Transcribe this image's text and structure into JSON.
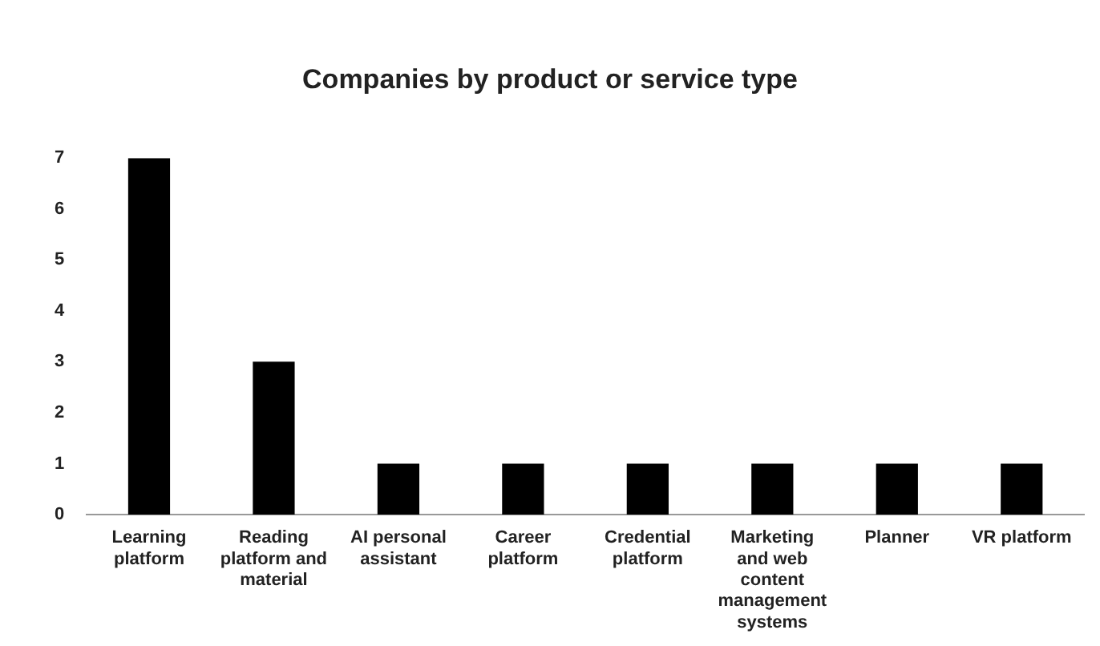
{
  "chart_data": {
    "type": "bar",
    "title": "Companies by product or service type",
    "categories": [
      "Learning platform",
      "Reading platform and material",
      "AI personal assistant",
      "Career platform",
      "Credential platform",
      "Marketing and web content management systems",
      "Planner",
      "VR platform"
    ],
    "values": [
      7,
      3,
      1,
      1,
      1,
      1,
      1,
      1
    ],
    "color": "#000000",
    "ylim": [
      0,
      7
    ],
    "yticks": [
      0,
      1,
      2,
      3,
      4,
      5,
      6,
      7
    ],
    "grid": false,
    "legend": false
  }
}
